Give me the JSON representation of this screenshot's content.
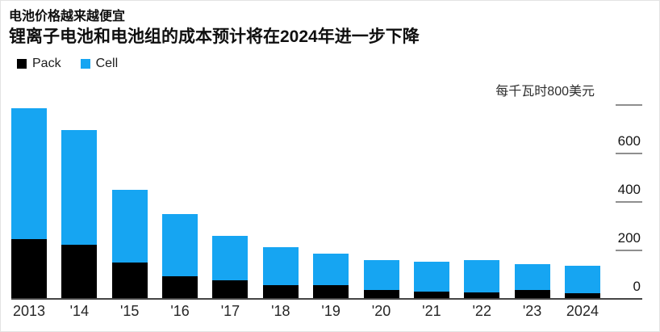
{
  "header": {
    "title": "电池价格越来越便宜",
    "subtitle": "锂离子电池和电池组的成本预计将在2024年进一步下降"
  },
  "legend": {
    "items": [
      {
        "label": "Pack",
        "color": "#000000"
      },
      {
        "label": "Cell",
        "color": "#16a5f2"
      }
    ]
  },
  "y_axis": {
    "unit_label": "每千瓦时800美元",
    "ticks": [
      {
        "value": 800,
        "label": ""
      },
      {
        "value": 600,
        "label": "600"
      },
      {
        "value": 400,
        "label": "400"
      },
      {
        "value": 200,
        "label": "200"
      },
      {
        "value": 0,
        "label": "0"
      }
    ]
  },
  "chart_data": {
    "type": "bar",
    "stacked": true,
    "title": "电池价格越来越便宜",
    "subtitle": "锂离子电池和电池组的成本预计将在2024年进一步下降",
    "unit_label": "每千瓦时800美元",
    "categories": [
      "2013",
      "'14",
      "'15",
      "'16",
      "'17",
      "'18",
      "'19",
      "'20",
      "'21",
      "'22",
      "'23",
      "2024"
    ],
    "series": [
      {
        "name": "Pack",
        "color": "#000000",
        "values": [
          245,
          220,
          147,
          90,
          73,
          53,
          53,
          33,
          28,
          23,
          33,
          20
        ]
      },
      {
        "name": "Cell",
        "color": "#16a5f2",
        "values": [
          540,
          473,
          300,
          257,
          184,
          157,
          130,
          125,
          122,
          135,
          107,
          112
        ]
      }
    ],
    "totals": [
      785,
      693,
      447,
      347,
      257,
      210,
      183,
      158,
      150,
      158,
      140,
      132
    ],
    "ylim": [
      0,
      800
    ],
    "yticks": [
      0,
      200,
      400,
      600,
      800
    ],
    "axis_side": "right",
    "legend_position": "top-left",
    "grid": false
  },
  "colors": {
    "cell_blue": "#16a5f2",
    "pack_black": "#000000",
    "axis_line": "#454545",
    "tick_line": "#8f8f8f",
    "text": "#0f0f0f"
  }
}
